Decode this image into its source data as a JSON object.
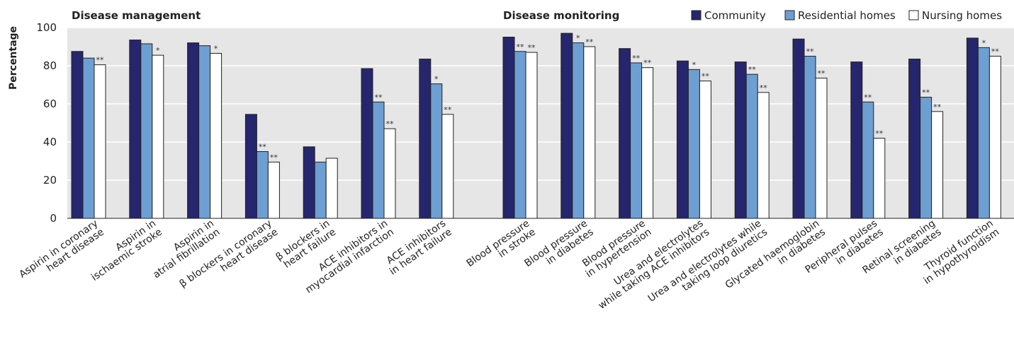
{
  "chart_data": {
    "type": "bar",
    "ylabel": "Percentage",
    "ylim": [
      0,
      100
    ],
    "yticks": [
      "0",
      "20",
      "40",
      "60",
      "80",
      "100"
    ],
    "grid": true,
    "legend_position": "top-right",
    "series": [
      {
        "name": "Community",
        "color": "#26266e"
      },
      {
        "name": "Residential homes",
        "color": "#6d9fd3"
      },
      {
        "name": "Nursing homes",
        "color": "#ffffff"
      }
    ],
    "groups": [
      {
        "title": "Disease management",
        "categories": [
          {
            "label": [
              "Aspirin in coronary",
              "heart disease"
            ],
            "values": [
              87.5,
              84,
              80.5
            ],
            "sig": [
              "",
              "",
              "**"
            ]
          },
          {
            "label": [
              "Aspirin in",
              "ischaemic stroke"
            ],
            "values": [
              93.5,
              91.5,
              85.5
            ],
            "sig": [
              "",
              "",
              "*"
            ]
          },
          {
            "label": [
              "Aspirin in",
              "atrial fibrillation"
            ],
            "values": [
              92,
              90.5,
              86.5
            ],
            "sig": [
              "",
              "",
              "*"
            ]
          },
          {
            "label": [
              "β blockers in coronary",
              "heart disease"
            ],
            "values": [
              54.5,
              35,
              29.5
            ],
            "sig": [
              "",
              "**",
              "**"
            ]
          },
          {
            "label": [
              "β blockers in",
              "heart failure"
            ],
            "values": [
              37.5,
              29.5,
              31.5
            ],
            "sig": [
              "",
              "",
              ""
            ]
          },
          {
            "label": [
              "ACE inhibitors in",
              "myocardial infarction"
            ],
            "values": [
              78.5,
              61,
              47
            ],
            "sig": [
              "",
              "**",
              "**"
            ]
          },
          {
            "label": [
              "ACE inhibitors",
              "in heart failure"
            ],
            "values": [
              83.5,
              70.5,
              54.5
            ],
            "sig": [
              "",
              "*",
              "**"
            ]
          }
        ]
      },
      {
        "title": "Disease monitoring",
        "categories": [
          {
            "label": [
              "Blood pressure",
              "in stroke"
            ],
            "values": [
              95,
              87.5,
              87
            ],
            "sig": [
              "",
              "**",
              "**"
            ]
          },
          {
            "label": [
              "Blood pressure",
              "in diabetes"
            ],
            "values": [
              97,
              92,
              90
            ],
            "sig": [
              "",
              "*",
              "**"
            ]
          },
          {
            "label": [
              "Blood pressure",
              "in hypertension"
            ],
            "values": [
              89,
              81.5,
              79
            ],
            "sig": [
              "",
              "**",
              "**"
            ]
          },
          {
            "label": [
              "Urea and electrolytes",
              "while taking ACE inhibitors"
            ],
            "values": [
              82.5,
              78,
              72
            ],
            "sig": [
              "",
              "*",
              "**"
            ]
          },
          {
            "label": [
              "Urea and electrolytes while",
              "taking loop diuretics"
            ],
            "values": [
              82,
              75.5,
              66
            ],
            "sig": [
              "",
              "**",
              "**"
            ]
          },
          {
            "label": [
              "Glycated haemoglobin",
              "in diabetes"
            ],
            "values": [
              94,
              85,
              73.5
            ],
            "sig": [
              "",
              "**",
              "**"
            ]
          },
          {
            "label": [
              "Peripheral pulses",
              "in diabetes"
            ],
            "values": [
              82,
              61,
              42
            ],
            "sig": [
              "",
              "**",
              "**"
            ]
          },
          {
            "label": [
              "Retinal screening",
              "in diabetes"
            ],
            "values": [
              83.5,
              63.5,
              56
            ],
            "sig": [
              "",
              "**",
              "**"
            ]
          },
          {
            "label": [
              "Thyroid function",
              "in hypothyroidism"
            ],
            "values": [
              94.5,
              89.5,
              85
            ],
            "sig": [
              "",
              "*",
              "**"
            ]
          }
        ]
      }
    ]
  },
  "colors": {
    "plot_background": "#e6e6e6",
    "gridline": "#ffffff",
    "bar_outline": "#222222"
  }
}
